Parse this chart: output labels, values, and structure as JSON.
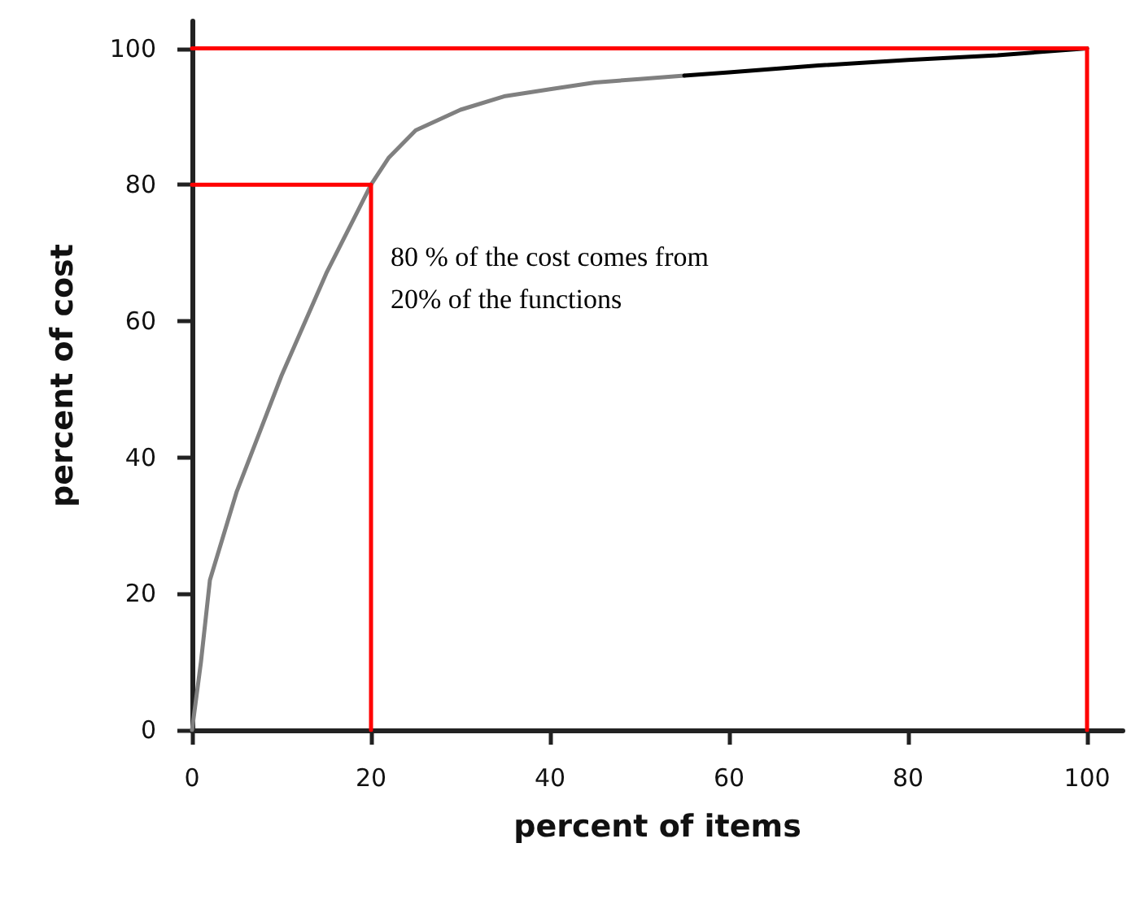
{
  "chart_data": {
    "type": "line",
    "xlabel": "percent of items",
    "ylabel": "percent of cost",
    "annotations": [
      "80 % of the cost comes from\n20% of the functions"
    ],
    "series": [
      {
        "color": "#808080",
        "x": [
          0,
          1,
          2,
          5,
          10,
          15,
          20,
          22,
          25,
          30,
          35,
          40,
          45,
          50,
          55
        ],
        "values": [
          0,
          10,
          22,
          35,
          52,
          67,
          80,
          84,
          88,
          91,
          93,
          94,
          95,
          95.5,
          96
        ]
      },
      {
        "color": "#000000",
        "x": [
          55,
          60,
          70,
          80,
          90,
          100
        ],
        "values": [
          96,
          96.5,
          97.5,
          98.3,
          99,
          100
        ]
      },
      {
        "color": "#ff0000",
        "x": [
          0,
          20,
          20
        ],
        "values": [
          80,
          80,
          0
        ]
      },
      {
        "color": "#ff0000",
        "x": [
          0,
          100,
          100
        ],
        "values": [
          100,
          100,
          0
        ]
      }
    ],
    "xlim": [
      0,
      104
    ],
    "ylim": [
      0,
      104
    ],
    "xticks": [
      0,
      20,
      40,
      60,
      80,
      100
    ],
    "yticks": [
      0,
      20,
      40,
      60,
      80,
      100
    ],
    "marker": "none",
    "line_style": "solid"
  }
}
